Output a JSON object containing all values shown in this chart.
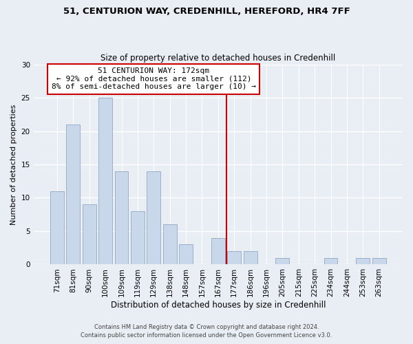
{
  "title": "51, CENTURION WAY, CREDENHILL, HEREFORD, HR4 7FF",
  "subtitle": "Size of property relative to detached houses in Credenhill",
  "xlabel": "Distribution of detached houses by size in Credenhill",
  "ylabel": "Number of detached properties",
  "bar_labels": [
    "71sqm",
    "81sqm",
    "90sqm",
    "100sqm",
    "109sqm",
    "119sqm",
    "129sqm",
    "138sqm",
    "148sqm",
    "157sqm",
    "167sqm",
    "177sqm",
    "186sqm",
    "196sqm",
    "205sqm",
    "215sqm",
    "225sqm",
    "234sqm",
    "244sqm",
    "253sqm",
    "263sqm"
  ],
  "bar_values": [
    11,
    21,
    9,
    25,
    14,
    8,
    14,
    6,
    3,
    0,
    4,
    2,
    2,
    0,
    1,
    0,
    0,
    1,
    0,
    1,
    1
  ],
  "bar_color": "#c8d8ea",
  "bar_edge_color": "#9ab0c8",
  "vline_x": 10.5,
  "vline_color": "#cc0000",
  "annotation_title": "51 CENTURION WAY: 172sqm",
  "annotation_line1": "← 92% of detached houses are smaller (112)",
  "annotation_line2": "8% of semi-detached houses are larger (10) →",
  "annotation_box_color": "#ffffff",
  "annotation_box_edge": "#cc0000",
  "ylim": [
    0,
    30
  ],
  "yticks": [
    0,
    5,
    10,
    15,
    20,
    25,
    30
  ],
  "footer1": "Contains HM Land Registry data © Crown copyright and database right 2024.",
  "footer2": "Contains public sector information licensed under the Open Government Licence v3.0.",
  "background_color": "#e8eef4"
}
